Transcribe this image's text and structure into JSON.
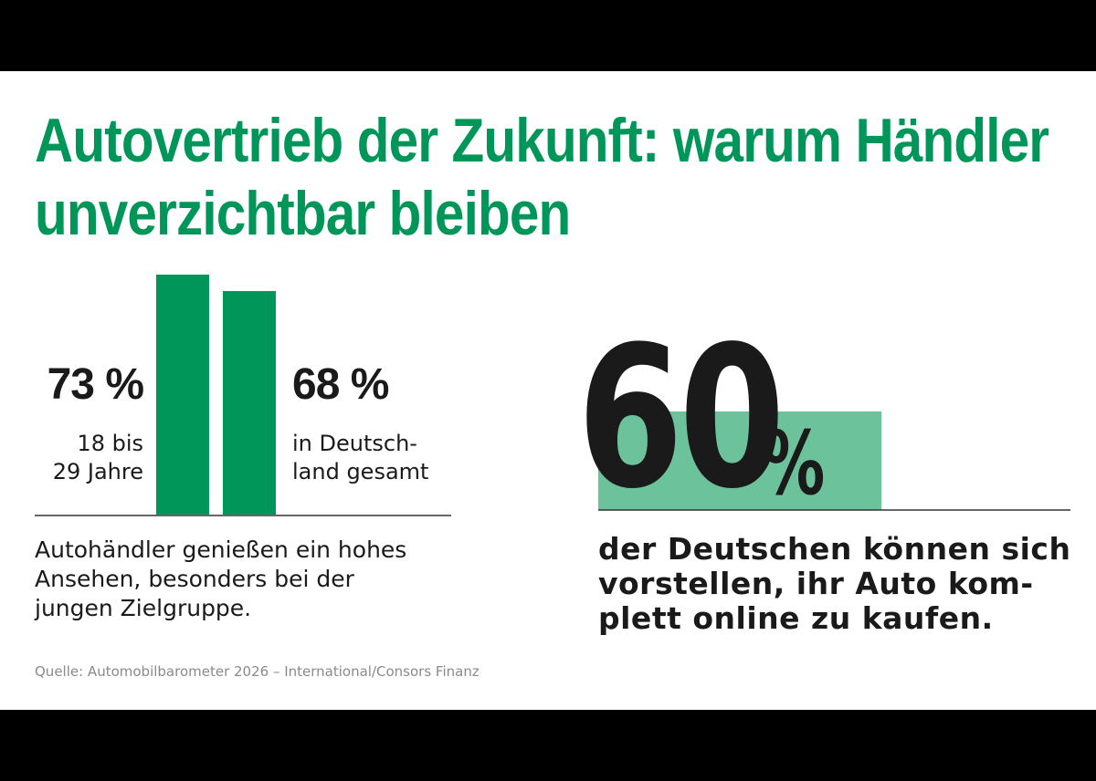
{
  "headline": {
    "line1": "Autovertrieb der Zukunft: warum Händler",
    "line2": "unverzichtbar bleiben"
  },
  "colors": {
    "brand_green": "#00965a",
    "light_green": "#6cc29b",
    "text": "#1a1a1a",
    "background": "#ffffff",
    "frame": "#000000"
  },
  "chart_data": [
    {
      "type": "bar",
      "categories": [
        "18 bis\n29 Jahre",
        "in Deutsch-\nland gesamt"
      ],
      "values": [
        73,
        68
      ],
      "value_labels": [
        "73 %",
        "68 %"
      ],
      "title": "",
      "xlabel": "",
      "ylabel": "",
      "ylim": [
        0,
        100
      ],
      "grid": false,
      "legend": "none",
      "note": "Autohändler genießen ein hohes\nAnsehen, besonders bei der\njungen Zielgruppe."
    },
    {
      "type": "bar",
      "categories": [
        ""
      ],
      "values": [
        60
      ],
      "value_label": "60",
      "unit": "%",
      "ylim": [
        0,
        100
      ],
      "grid": false,
      "legend": "none",
      "note": "der Deutschen können sich\nvorstellen, ihr Auto kom-\nplett online zu kaufen."
    }
  ],
  "source": "Quelle: Automobilbarometer 2026 – International/Consors Finanz"
}
